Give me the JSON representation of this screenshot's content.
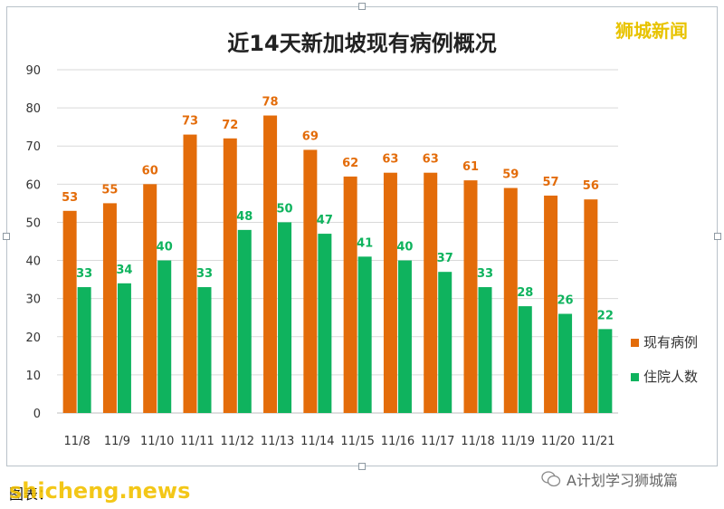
{
  "watermark": "狮城新闻",
  "footer": {
    "source": "图表：",
    "site": "shicheng.news",
    "account": "A计划学习狮城篇"
  },
  "colors": {
    "series1": "#e36c0a",
    "series2": "#0fb35e",
    "grid": "#d9d9d9",
    "text": "#333333"
  },
  "chart_data": {
    "type": "bar",
    "title": "近14天新加坡现有病例概况",
    "categories": [
      "11/8",
      "11/9",
      "11/10",
      "11/11",
      "11/12",
      "11/13",
      "11/14",
      "11/15",
      "11/16",
      "11/17",
      "11/18",
      "11/19",
      "11/20",
      "11/21"
    ],
    "series": [
      {
        "name": "现有病例",
        "values": [
          53,
          55,
          60,
          73,
          72,
          78,
          69,
          62,
          63,
          63,
          61,
          59,
          57,
          56
        ]
      },
      {
        "name": "住院人数",
        "values": [
          33,
          34,
          40,
          33,
          48,
          50,
          47,
          41,
          40,
          37,
          33,
          28,
          26,
          22
        ]
      }
    ],
    "ylim": [
      0,
      90
    ],
    "yticks": [
      0,
      10,
      20,
      30,
      40,
      50,
      60,
      70,
      80,
      90
    ],
    "grid": true,
    "legend": "right"
  }
}
